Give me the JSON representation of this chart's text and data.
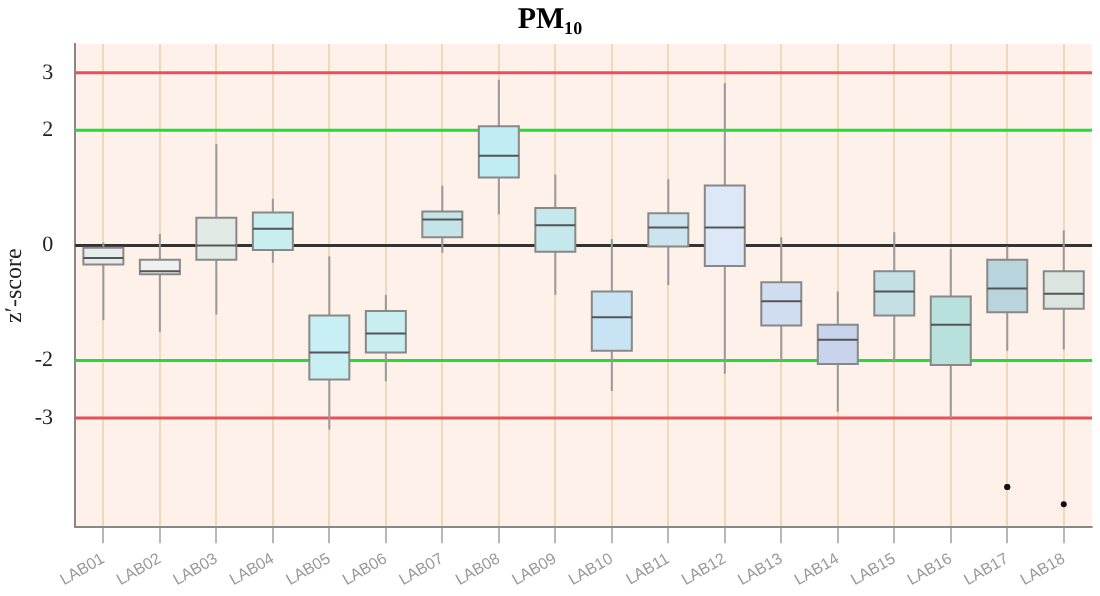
{
  "chart_data": {
    "type": "box",
    "title": "PM₁₀",
    "ylabel": "z′-score",
    "categories": [
      "LAB01",
      "LAB02",
      "LAB03",
      "LAB04",
      "LAB05",
      "LAB06",
      "LAB07",
      "LAB08",
      "LAB09",
      "LAB10",
      "LAB11",
      "LAB12",
      "LAB13",
      "LAB14",
      "LAB15",
      "LAB16",
      "LAB17",
      "LAB18"
    ],
    "boxes": [
      {
        "low": -1.3,
        "q1": -0.33,
        "median": -0.22,
        "q3": -0.04,
        "high": 0.05
      },
      {
        "low": -1.5,
        "q1": -0.5,
        "median": -0.45,
        "q3": -0.25,
        "high": 0.2
      },
      {
        "low": -1.2,
        "q1": -0.25,
        "median": 0.0,
        "q3": 0.48,
        "high": 1.76
      },
      {
        "low": -0.3,
        "q1": -0.08,
        "median": 0.29,
        "q3": 0.57,
        "high": 0.81
      },
      {
        "low": -3.2,
        "q1": -2.33,
        "median": -1.86,
        "q3": -1.22,
        "high": -0.19
      },
      {
        "low": -2.36,
        "q1": -1.86,
        "median": -1.53,
        "q3": -1.14,
        "high": -0.86
      },
      {
        "low": -0.13,
        "q1": 0.14,
        "median": 0.45,
        "q3": 0.59,
        "high": 1.04
      },
      {
        "low": 0.54,
        "q1": 1.18,
        "median": 1.56,
        "q3": 2.07,
        "high": 2.88
      },
      {
        "low": -0.86,
        "q1": -0.11,
        "median": 0.35,
        "q3": 0.65,
        "high": 1.23
      },
      {
        "low": -2.53,
        "q1": -1.83,
        "median": -1.25,
        "q3": -0.8,
        "high": 0.11
      },
      {
        "low": -0.69,
        "q1": -0.02,
        "median": 0.31,
        "q3": 0.56,
        "high": 1.15
      },
      {
        "low": -2.23,
        "q1": -0.36,
        "median": 0.31,
        "q3": 1.04,
        "high": 2.82
      },
      {
        "low": -2.03,
        "q1": -1.39,
        "median": -0.97,
        "q3": -0.64,
        "high": 0.14
      },
      {
        "low": -2.89,
        "q1": -2.06,
        "median": -1.64,
        "q3": -1.38,
        "high": -0.8
      },
      {
        "low": -2.03,
        "q1": -1.22,
        "median": -0.8,
        "q3": -0.45,
        "high": 0.23
      },
      {
        "low": -3.0,
        "q1": -2.08,
        "median": -1.38,
        "q3": -0.89,
        "high": -0.06
      },
      {
        "low": -1.83,
        "q1": -1.16,
        "median": -0.75,
        "q3": -0.25,
        "high": -0.02,
        "outliers": [
          -4.2,
          -4.2
        ]
      },
      {
        "low": -1.81,
        "q1": -1.1,
        "median": -0.84,
        "q3": -0.45,
        "high": 0.26,
        "outliers": [
          -4.5
        ]
      }
    ],
    "colors": [
      "#e6ecec",
      "#eef0f0",
      "#e2eae6",
      "#c8eef0",
      "#c8f0f4",
      "#c8eef0",
      "#c4e4e8",
      "#c0ecf4",
      "#c4e8ec",
      "#c8e4f4",
      "#cce4f0",
      "#dce8f8",
      "#d0dcf0",
      "#c8d4ec",
      "#c4e0e4",
      "#b8e0dc",
      "#b8d4dc",
      "#dce4e0"
    ],
    "ylim": [
      -4.9,
      3.5
    ],
    "yticks": [
      -3,
      -2,
      0,
      2,
      3
    ],
    "grid": "x",
    "ref_lines": [
      {
        "axis": "y",
        "value": 3,
        "color": "#e8505a"
      },
      {
        "axis": "y",
        "value": 2,
        "color": "#22dd33"
      },
      {
        "axis": "y",
        "value": 0,
        "color": "#333333"
      },
      {
        "axis": "y",
        "value": -2,
        "color": "#22dd33"
      },
      {
        "axis": "y",
        "value": -3,
        "color": "#e8505a"
      }
    ]
  }
}
